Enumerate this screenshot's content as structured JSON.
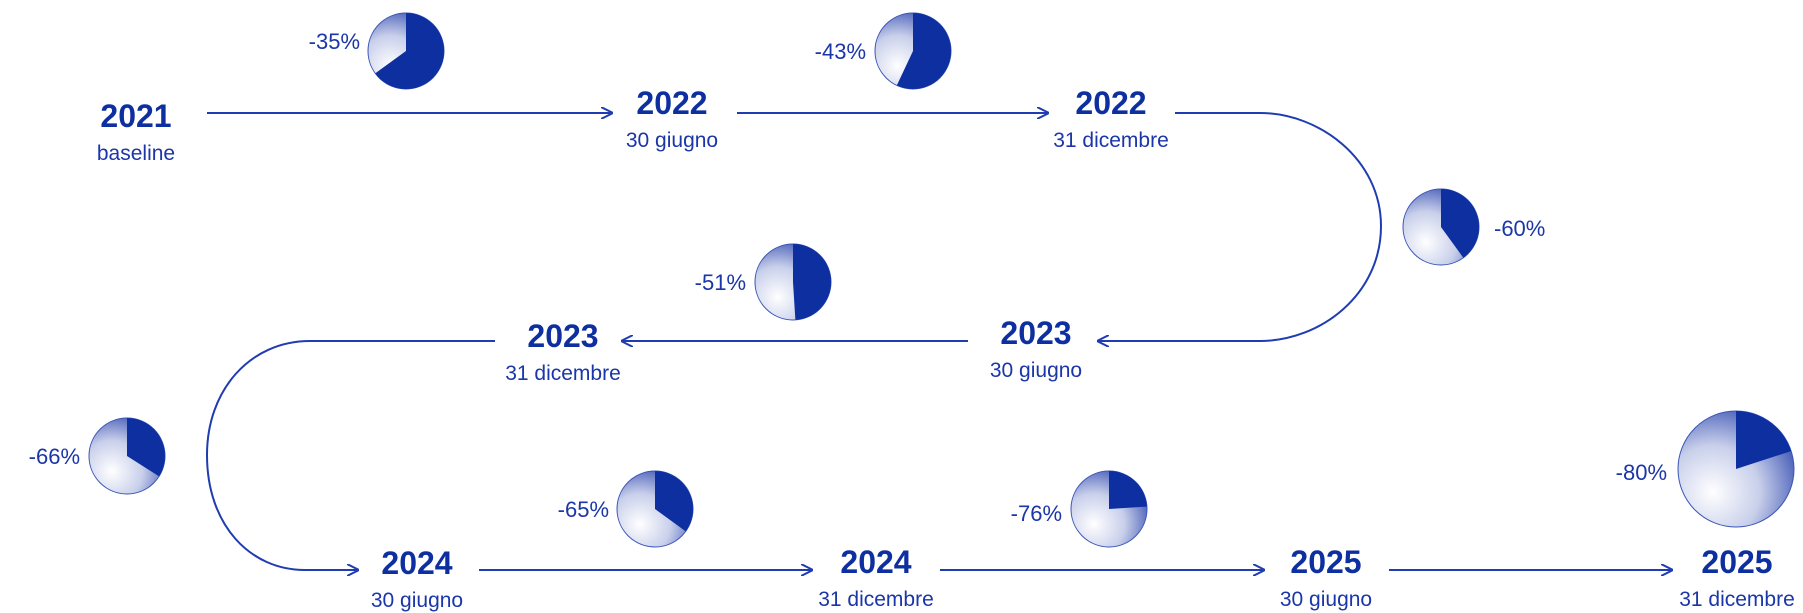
{
  "colors": {
    "primary": "#0d2fa0",
    "line": "#1f3db0"
  },
  "milestones": [
    {
      "year": "2021",
      "label": "baseline"
    },
    {
      "year": "2022",
      "label": "30 giugno"
    },
    {
      "year": "2022",
      "label": "31 dicembre"
    },
    {
      "year": "2023",
      "label": "30 giugno"
    },
    {
      "year": "2023",
      "label": "31 dicembre"
    },
    {
      "year": "2024",
      "label": "30 giugno"
    },
    {
      "year": "2024",
      "label": "31 dicembre"
    },
    {
      "year": "2025",
      "label": "30 giugno"
    },
    {
      "year": "2025",
      "label": "31 dicembre"
    }
  ],
  "reductions": [
    {
      "label": "-35%",
      "value": 35
    },
    {
      "label": "-43%",
      "value": 43
    },
    {
      "label": "-60%",
      "value": 60
    },
    {
      "label": "-51%",
      "value": 51
    },
    {
      "label": "-66%",
      "value": 66
    },
    {
      "label": "-65%",
      "value": 65
    },
    {
      "label": "-76%",
      "value": 76
    },
    {
      "label": "-80%",
      "value": 80
    }
  ]
}
